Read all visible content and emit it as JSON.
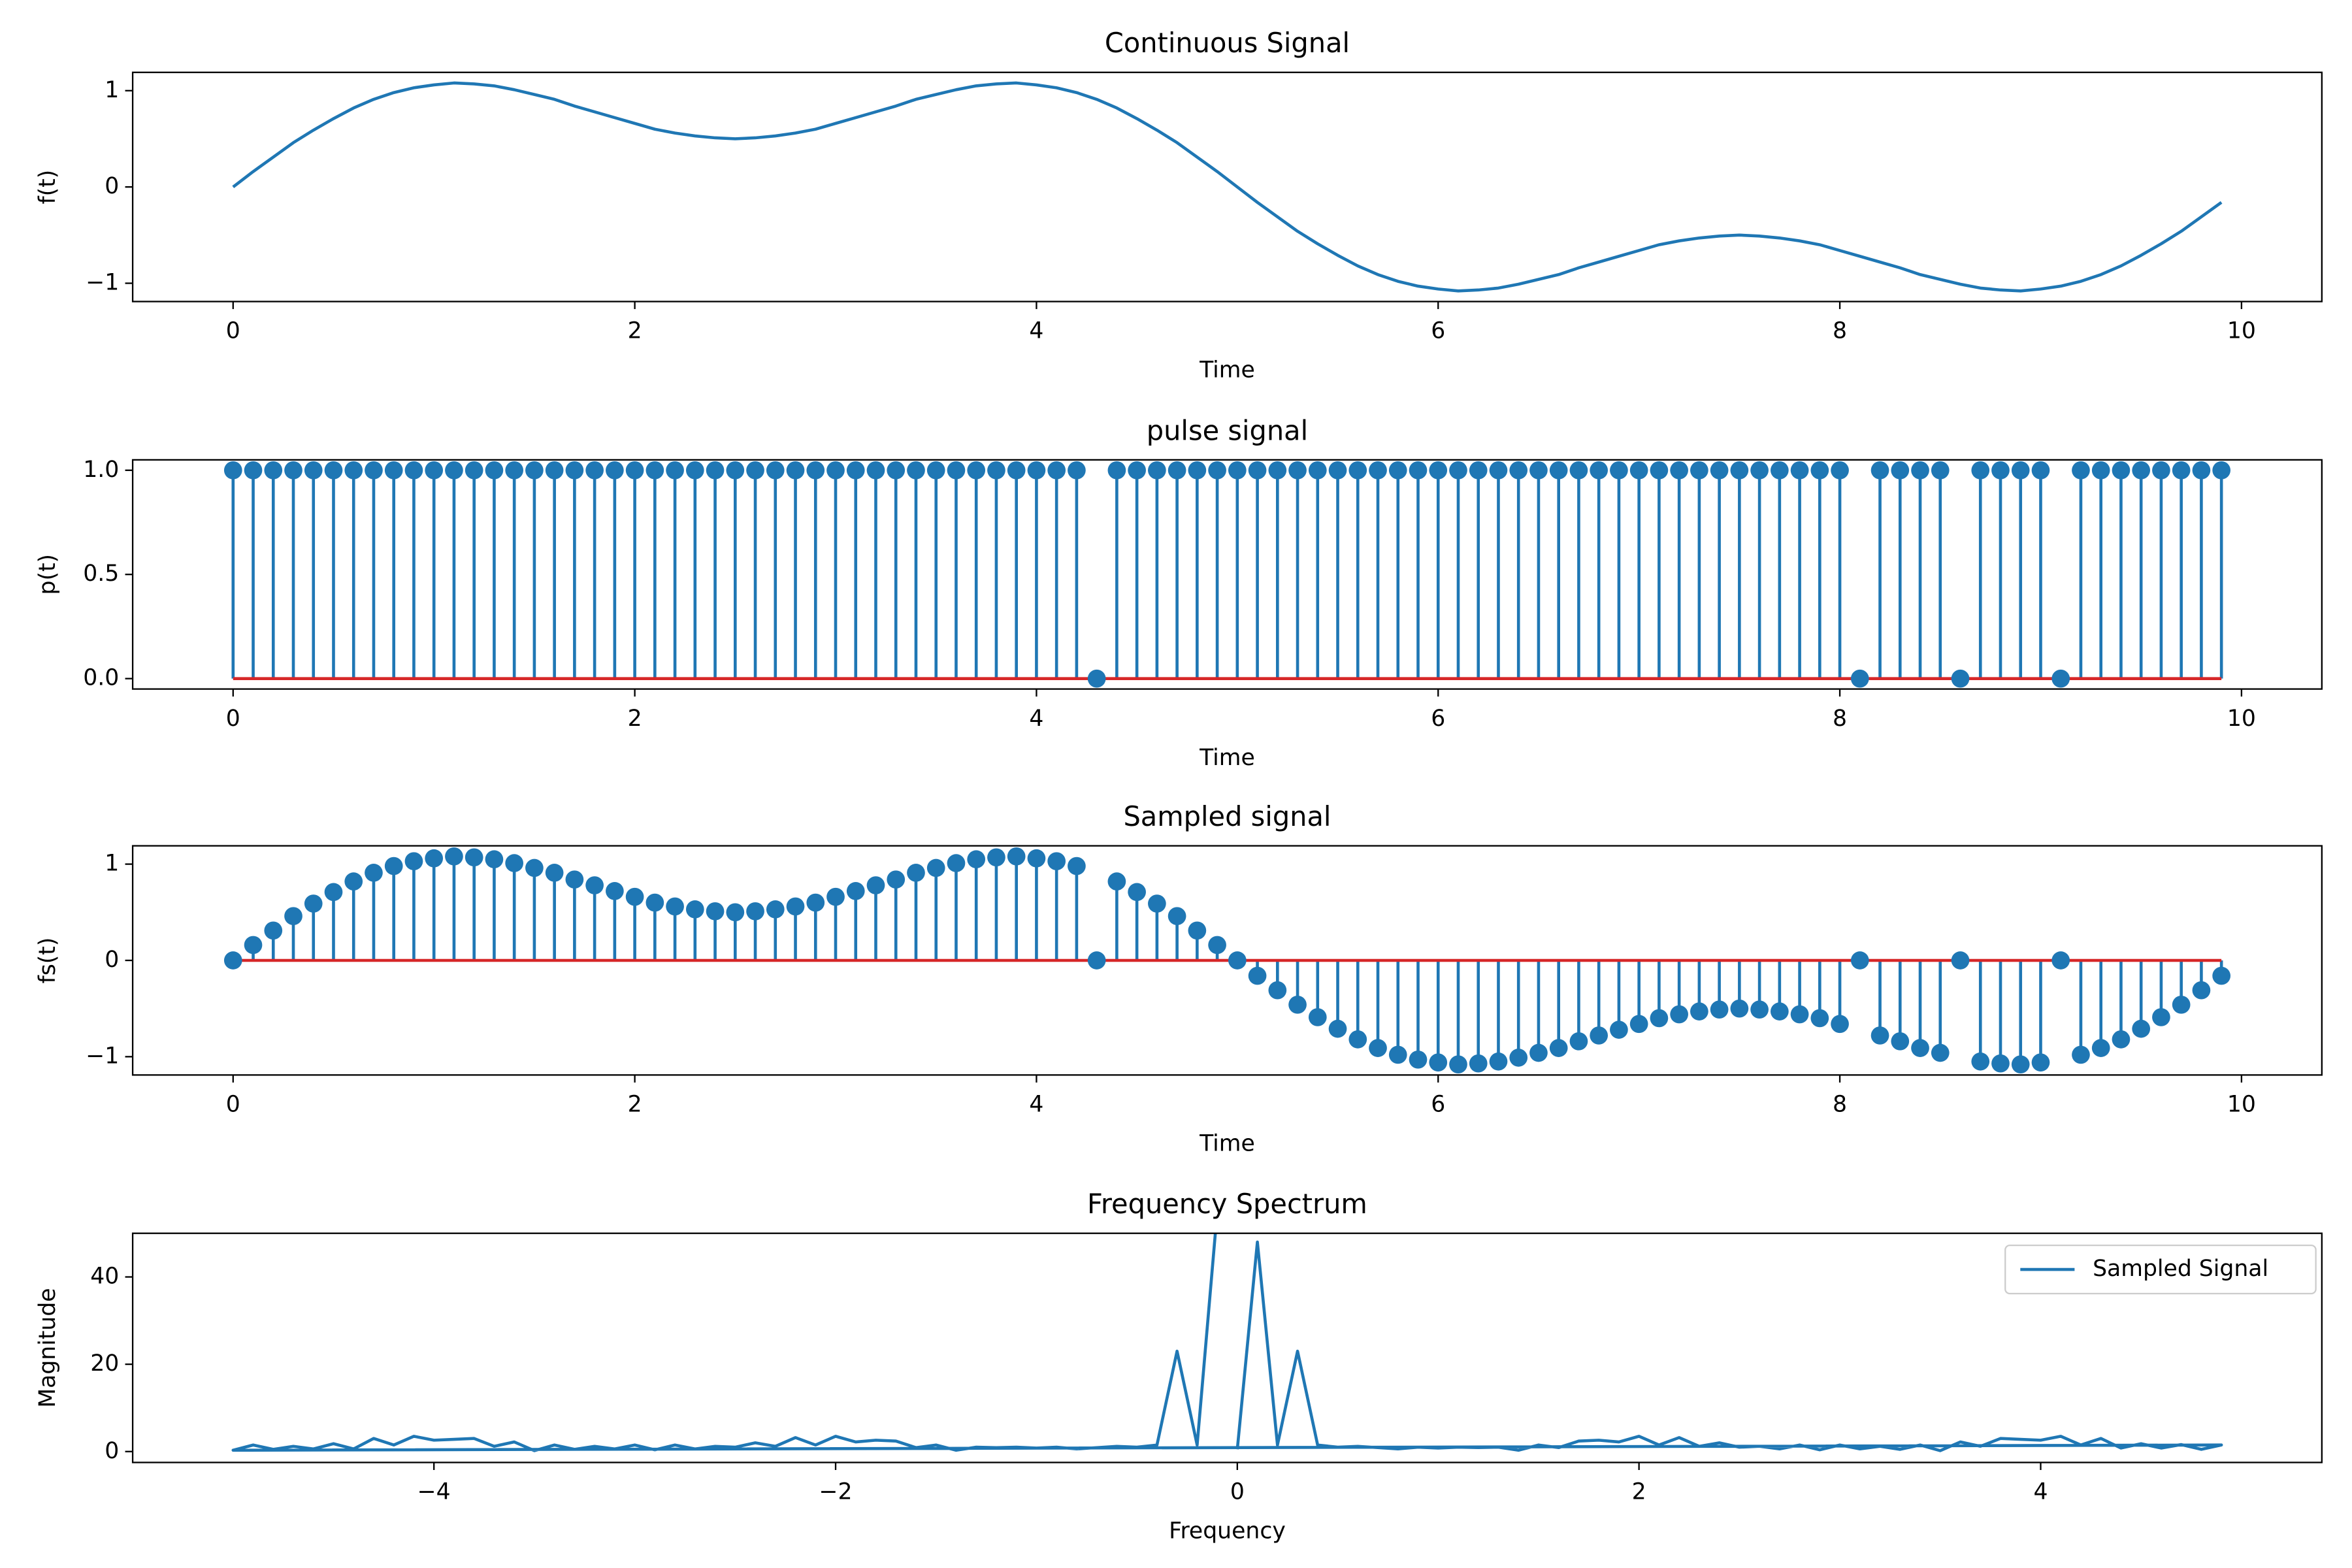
{
  "chart_data": [
    {
      "type": "line",
      "title": "Continuous Signal",
      "xlabel": "Time",
      "ylabel": "f(t)",
      "color": "#1f77b4",
      "x": [
        0,
        0.1,
        0.2,
        0.3,
        0.4,
        0.5,
        0.6,
        0.7,
        0.8,
        0.9,
        1,
        1.1,
        1.2,
        1.3,
        1.4,
        1.5,
        1.6,
        1.7,
        1.8,
        1.9,
        2,
        2.1,
        2.2,
        2.3,
        2.4,
        2.5,
        2.6,
        2.7,
        2.8,
        2.9,
        3,
        3.1,
        3.2,
        3.3,
        3.4,
        3.5,
        3.6,
        3.7,
        3.8,
        3.9,
        4,
        4.1,
        4.2,
        4.3,
        4.4,
        4.5,
        4.6,
        4.7,
        4.8,
        4.9,
        5,
        5.1,
        5.2,
        5.3,
        5.4,
        5.5,
        5.6,
        5.7,
        5.8,
        5.9,
        6,
        6.1,
        6.2,
        6.3,
        6.4,
        6.5,
        6.6,
        6.7,
        6.8,
        6.9,
        7,
        7.1,
        7.2,
        7.3,
        7.4,
        7.5,
        7.6,
        7.7,
        7.8,
        7.9,
        8,
        8.1,
        8.2,
        8.3,
        8.4,
        8.5,
        8.6,
        8.7,
        8.8,
        8.9,
        9,
        9.1,
        9.2,
        9.3,
        9.4,
        9.5,
        9.6,
        9.7,
        9.8,
        9.9
      ],
      "values": [
        0,
        0.16,
        0.31,
        0.46,
        0.59,
        0.71,
        0.82,
        0.91,
        0.98,
        1.03,
        1.06,
        1.08,
        1.07,
        1.05,
        1.01,
        0.96,
        0.91,
        0.84,
        0.78,
        0.72,
        0.66,
        0.6,
        0.56,
        0.53,
        0.51,
        0.5,
        0.51,
        0.53,
        0.56,
        0.6,
        0.66,
        0.72,
        0.78,
        0.84,
        0.91,
        0.96,
        1.01,
        1.05,
        1.07,
        1.08,
        1.06,
        1.03,
        0.98,
        0.91,
        0.82,
        0.71,
        0.59,
        0.46,
        0.31,
        0.16,
        0,
        -0.16,
        -0.31,
        -0.46,
        -0.59,
        -0.71,
        -0.82,
        -0.91,
        -0.98,
        -1.03,
        -1.06,
        -1.08,
        -1.07,
        -1.05,
        -1.01,
        -0.96,
        -0.91,
        -0.84,
        -0.78,
        -0.72,
        -0.66,
        -0.6,
        -0.56,
        -0.53,
        -0.51,
        -0.5,
        -0.51,
        -0.53,
        -0.56,
        -0.6,
        -0.66,
        -0.72,
        -0.78,
        -0.84,
        -0.91,
        -0.96,
        -1.01,
        -1.05,
        -1.07,
        -1.08,
        -1.06,
        -1.03,
        -0.98,
        -0.91,
        -0.82,
        -0.71,
        -0.59,
        -0.46,
        -0.31,
        -0.16
      ],
      "xlim": [
        -0.5,
        10.4
      ],
      "ylim": [
        -1.19,
        1.19
      ],
      "xticks": [
        0,
        2,
        4,
        6,
        8,
        10
      ],
      "yticks": [
        {
          "value": -1,
          "label": "−1"
        },
        0,
        1
      ]
    },
    {
      "type": "stem",
      "title": "pulse signal",
      "xlabel": "Time",
      "ylabel": "p(t)",
      "color": "#1f77b4",
      "baseline_color": "#d62728",
      "x": [
        0,
        0.1,
        0.2,
        0.3,
        0.4,
        0.5,
        0.6,
        0.7,
        0.8,
        0.9,
        1,
        1.1,
        1.2,
        1.3,
        1.4,
        1.5,
        1.6,
        1.7,
        1.8,
        1.9,
        2,
        2.1,
        2.2,
        2.3,
        2.4,
        2.5,
        2.6,
        2.7,
        2.8,
        2.9,
        3,
        3.1,
        3.2,
        3.3,
        3.4,
        3.5,
        3.6,
        3.7,
        3.8,
        3.9,
        4,
        4.1,
        4.2,
        4.3,
        4.4,
        4.5,
        4.6,
        4.7,
        4.8,
        4.9,
        5,
        5.1,
        5.2,
        5.3,
        5.4,
        5.5,
        5.6,
        5.7,
        5.8,
        5.9,
        6,
        6.1,
        6.2,
        6.3,
        6.4,
        6.5,
        6.6,
        6.7,
        6.8,
        6.9,
        7,
        7.1,
        7.2,
        7.3,
        7.4,
        7.5,
        7.6,
        7.7,
        7.8,
        7.9,
        8,
        8.1,
        8.2,
        8.3,
        8.4,
        8.5,
        8.6,
        8.7,
        8.8,
        8.9,
        9,
        9.1,
        9.2,
        9.3,
        9.4,
        9.5,
        9.6,
        9.7,
        9.8,
        9.9
      ],
      "values": [
        1,
        1,
        1,
        1,
        1,
        1,
        1,
        1,
        1,
        1,
        1,
        1,
        1,
        1,
        1,
        1,
        1,
        1,
        1,
        1,
        1,
        1,
        1,
        1,
        1,
        1,
        1,
        1,
        1,
        1,
        1,
        1,
        1,
        1,
        1,
        1,
        1,
        1,
        1,
        1,
        1,
        1,
        1,
        0,
        1,
        1,
        1,
        1,
        1,
        1,
        1,
        1,
        1,
        1,
        1,
        1,
        1,
        1,
        1,
        1,
        1,
        1,
        1,
        1,
        1,
        1,
        1,
        1,
        1,
        1,
        1,
        1,
        1,
        1,
        1,
        1,
        1,
        1,
        1,
        1,
        1,
        0,
        1,
        1,
        1,
        1,
        0,
        1,
        1,
        1,
        1,
        0,
        1,
        1,
        1,
        1,
        1,
        1,
        1,
        1
      ],
      "xlim": [
        -0.5,
        10.4
      ],
      "ylim": [
        -0.05,
        1.05
      ],
      "xticks": [
        0,
        2,
        4,
        6,
        8,
        10
      ],
      "yticks": [
        {
          "value": 0,
          "label": "0.0"
        },
        {
          "value": 0.5,
          "label": "0.5"
        },
        {
          "value": 1,
          "label": "1.0"
        }
      ]
    },
    {
      "type": "stem",
      "title": "Sampled signal",
      "xlabel": "Time",
      "ylabel": "fs(t)",
      "color": "#1f77b4",
      "baseline_color": "#d62728",
      "x": [
        0,
        0.1,
        0.2,
        0.3,
        0.4,
        0.5,
        0.6,
        0.7,
        0.8,
        0.9,
        1,
        1.1,
        1.2,
        1.3,
        1.4,
        1.5,
        1.6,
        1.7,
        1.8,
        1.9,
        2,
        2.1,
        2.2,
        2.3,
        2.4,
        2.5,
        2.6,
        2.7,
        2.8,
        2.9,
        3,
        3.1,
        3.2,
        3.3,
        3.4,
        3.5,
        3.6,
        3.7,
        3.8,
        3.9,
        4,
        4.1,
        4.2,
        4.3,
        4.4,
        4.5,
        4.6,
        4.7,
        4.8,
        4.9,
        5,
        5.1,
        5.2,
        5.3,
        5.4,
        5.5,
        5.6,
        5.7,
        5.8,
        5.9,
        6,
        6.1,
        6.2,
        6.3,
        6.4,
        6.5,
        6.6,
        6.7,
        6.8,
        6.9,
        7,
        7.1,
        7.2,
        7.3,
        7.4,
        7.5,
        7.6,
        7.7,
        7.8,
        7.9,
        8,
        8.1,
        8.2,
        8.3,
        8.4,
        8.5,
        8.6,
        8.7,
        8.8,
        8.9,
        9,
        9.1,
        9.2,
        9.3,
        9.4,
        9.5,
        9.6,
        9.7,
        9.8,
        9.9
      ],
      "values": [
        0,
        0.16,
        0.31,
        0.46,
        0.59,
        0.71,
        0.82,
        0.91,
        0.98,
        1.03,
        1.06,
        1.08,
        1.07,
        1.05,
        1.01,
        0.96,
        0.91,
        0.84,
        0.78,
        0.72,
        0.66,
        0.6,
        0.56,
        0.53,
        0.51,
        0.5,
        0.51,
        0.53,
        0.56,
        0.6,
        0.66,
        0.72,
        0.78,
        0.84,
        0.91,
        0.96,
        1.01,
        1.05,
        1.07,
        1.08,
        1.06,
        1.03,
        0.98,
        0,
        0.82,
        0.71,
        0.59,
        0.46,
        0.31,
        0.16,
        0,
        -0.16,
        -0.31,
        -0.46,
        -0.59,
        -0.71,
        -0.82,
        -0.91,
        -0.98,
        -1.03,
        -1.06,
        -1.08,
        -1.07,
        -1.05,
        -1.01,
        -0.96,
        -0.91,
        -0.84,
        -0.78,
        -0.72,
        -0.66,
        -0.6,
        -0.56,
        -0.53,
        -0.51,
        -0.5,
        -0.51,
        -0.53,
        -0.56,
        -0.6,
        -0.66,
        0,
        -0.78,
        -0.84,
        -0.91,
        -0.96,
        0,
        -1.05,
        -1.07,
        -1.08,
        -1.06,
        0,
        -0.98,
        -0.91,
        -0.82,
        -0.71,
        -0.59,
        -0.46,
        -0.31,
        -0.16
      ],
      "xlim": [
        -0.5,
        10.4
      ],
      "ylim": [
        -1.19,
        1.19
      ],
      "xticks": [
        0,
        2,
        4,
        6,
        8,
        10
      ],
      "yticks": [
        {
          "value": -1,
          "label": "−1"
        },
        0,
        1
      ]
    },
    {
      "type": "line",
      "title": "Frequency Spectrum",
      "xlabel": "Frequency",
      "ylabel": "Magnitude",
      "legend": "upper right",
      "x": [
        0,
        0.1,
        0.2,
        0.3,
        0.4,
        0.5,
        0.6,
        0.7,
        0.8,
        0.9,
        1,
        1.1,
        1.2,
        1.3,
        1.4,
        1.5,
        1.6,
        1.7,
        1.8,
        1.9,
        2,
        2.1,
        2.2,
        2.3,
        2.4,
        2.5,
        2.6,
        2.7,
        2.8,
        2.9,
        3,
        3.1,
        3.2,
        3.3,
        3.4,
        3.5,
        3.6,
        3.7,
        3.8,
        3.9,
        4,
        4.1,
        4.2,
        4.3,
        4.4,
        4.5,
        4.6,
        4.7,
        4.8,
        4.9,
        -5,
        -4.9,
        -4.8,
        -4.7,
        -4.6,
        -4.5,
        -4.4,
        -4.3,
        -4.2,
        -4.1,
        -4,
        -3.9,
        -3.8,
        -3.7,
        -3.6,
        -3.5,
        -3.4,
        -3.3,
        -3.2,
        -3.1,
        -3,
        -2.9,
        -2.8,
        -2.7,
        -2.6,
        -2.5,
        -2.4,
        -2.3,
        -2.2,
        -2.1,
        -2,
        -1.9,
        -1.8,
        -1.7,
        -1.6,
        -1.5,
        -1.4,
        -1.3,
        -1.2,
        -1.1,
        -1,
        -0.9,
        -0.8,
        -0.7,
        -0.6,
        -0.5,
        -0.4,
        -0.3,
        -0.2,
        -0.1
      ],
      "series": [
        {
          "name": "Sampled Signal",
          "color": "#1f77b4",
          "values": [
            0.5,
            48,
            1.5,
            23,
            1.5,
            1,
            1.2,
            0.9,
            0.6,
            1,
            0.8,
            1,
            0.9,
            1,
            0.3,
            1.5,
            0.9,
            2.4,
            2.6,
            2.2,
            3.5,
            1.5,
            3.2,
            1.2,
            2,
            1,
            1.2,
            0.6,
            1.5,
            0.4,
            1.5,
            0.6,
            1.2,
            0.5,
            1.5,
            0.2,
            2.2,
            1.2,
            3,
            2.8,
            2.6,
            3.5,
            1.5,
            3,
            0.8,
            1.8,
            0.8,
            1.6,
            0.5,
            1.5,
            0.3,
            1.5,
            0.5,
            1.2,
            0.6,
            1.8,
            0.6,
            3,
            1.5,
            3.5,
            2.6,
            2.8,
            3,
            1.2,
            2.2,
            0.2,
            1.5,
            0.5,
            1.2,
            0.6,
            1.5,
            0.4,
            1.5,
            0.6,
            1.2,
            1,
            2,
            1.2,
            3.2,
            1.5,
            3.5,
            2.2,
            2.6,
            2.4,
            0.9,
            1.5,
            0.3,
            1,
            0.9,
            1,
            0.8,
            1,
            0.6,
            0.9,
            1.2,
            1,
            1.5,
            23,
            1.5,
            55
          ]
        }
      ],
      "xlim": [
        -5.5,
        5.4
      ],
      "ylim": [
        -2.5,
        50
      ],
      "xticks": [
        {
          "value": -4,
          "label": "−4"
        },
        {
          "value": -2,
          "label": "−2"
        },
        0,
        2,
        4
      ],
      "yticks": [
        0,
        20,
        40
      ]
    }
  ]
}
